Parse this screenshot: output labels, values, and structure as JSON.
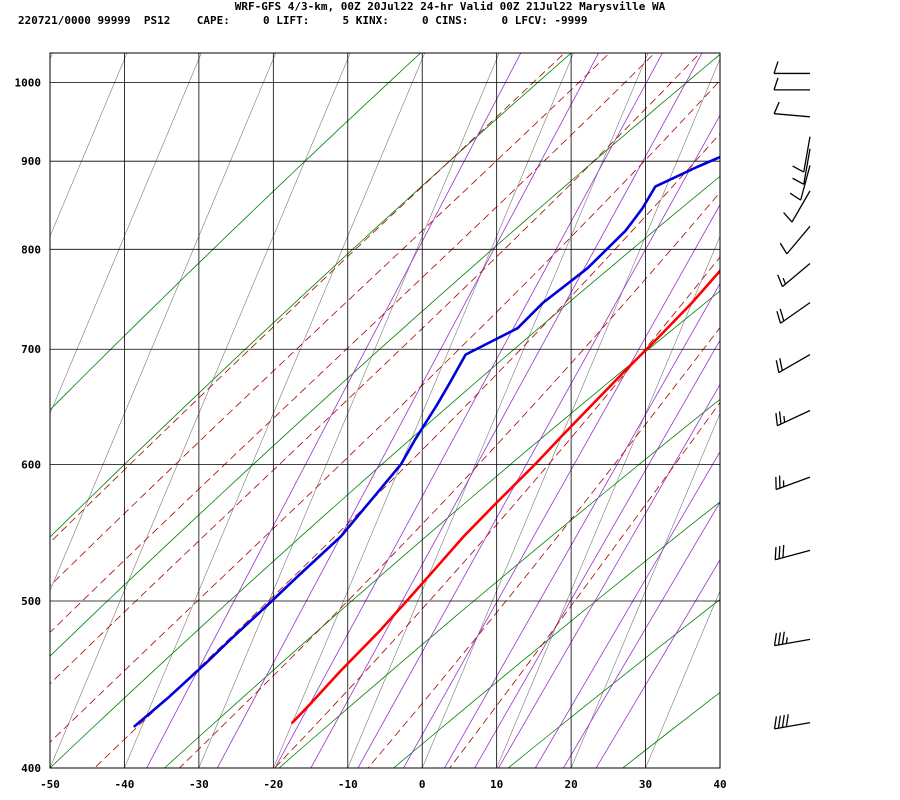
{
  "header": {
    "title": "WRF-GFS 4/3-km, 00Z 20Jul22 24-hr Valid 00Z 21Jul22 Marysville WA",
    "subtitle": "220721/0000 99999  PS12    CAPE:     0 LIFT:     5 KINX:     0 CINS:     0 LFCV: -9999"
  },
  "colors": {
    "temperature": "#ff0000",
    "dewpoint": "#0000dd",
    "isotherm": "#000000",
    "dry_adiabat": "#008000",
    "moist_adiabat": "#aa0000",
    "mixing_ratio": "#9933cc"
  },
  "chart_data": {
    "type": "line",
    "subtype": "skew-t log-p sounding",
    "xlim": [
      -50,
      40
    ],
    "ylim": [
      1040,
      400
    ],
    "y_scale": "log",
    "grid": true,
    "x_ticks": [
      "-50",
      "-40",
      "-30",
      "-20",
      "-10",
      "0",
      "10",
      "20",
      "30",
      "40"
    ],
    "y_ticks": [
      "400",
      "500",
      "600",
      "700",
      "800",
      "900",
      "1000"
    ],
    "series": [
      {
        "key": "temperature",
        "points": [
          [
            26.5,
            1012
          ],
          [
            25.0,
            1010
          ],
          [
            23.5,
            997
          ],
          [
            21.0,
            973
          ],
          [
            20.0,
            955
          ],
          [
            18.5,
            930
          ],
          [
            17.5,
            907
          ],
          [
            17.0,
            885
          ],
          [
            16.5,
            865
          ],
          [
            15.5,
            835
          ],
          [
            14.5,
            812
          ],
          [
            12.0,
            778
          ],
          [
            10.0,
            745
          ],
          [
            7.5,
            712
          ],
          [
            5.0,
            682
          ],
          [
            2.5,
            652
          ],
          [
            0.0,
            623
          ],
          [
            -2.0,
            600
          ],
          [
            -5.0,
            570
          ],
          [
            -7.5,
            545
          ],
          [
            -9.5,
            522
          ],
          [
            -11.5,
            500
          ],
          [
            -13.5,
            480
          ],
          [
            -16.5,
            455
          ],
          [
            -18.5,
            437
          ],
          [
            -20.0,
            425
          ]
        ]
      },
      {
        "key": "dewpoint",
        "points": [
          [
            12.5,
            1012
          ],
          [
            12.0,
            997
          ],
          [
            11.0,
            955
          ],
          [
            7.0,
            912
          ],
          [
            3.0,
            893
          ],
          [
            -1.5,
            870
          ],
          [
            -2.0,
            845
          ],
          [
            -3.0,
            820
          ],
          [
            -6.0,
            780
          ],
          [
            -10.0,
            745
          ],
          [
            -12.0,
            720
          ],
          [
            -17.5,
            695
          ],
          [
            -18.0,
            670
          ],
          [
            -18.5,
            650
          ],
          [
            -19.5,
            620
          ],
          [
            -20.0,
            600
          ],
          [
            -22.0,
            572
          ],
          [
            -24.0,
            545
          ],
          [
            -27.5,
            517
          ],
          [
            -30.0,
            497
          ],
          [
            -33.0,
            475
          ],
          [
            -35.0,
            460
          ],
          [
            -38.0,
            440
          ],
          [
            -41.0,
            423
          ]
        ]
      }
    ],
    "wind_barbs": [
      {
        "pressure": 425,
        "dir_deg": 260,
        "speed_kt": 40
      },
      {
        "pressure": 475,
        "dir_deg": 260,
        "speed_kt": 35
      },
      {
        "pressure": 535,
        "dir_deg": 255,
        "speed_kt": 30
      },
      {
        "pressure": 590,
        "dir_deg": 250,
        "speed_kt": 25
      },
      {
        "pressure": 645,
        "dir_deg": 245,
        "speed_kt": 25
      },
      {
        "pressure": 695,
        "dir_deg": 240,
        "speed_kt": 20
      },
      {
        "pressure": 745,
        "dir_deg": 235,
        "speed_kt": 20
      },
      {
        "pressure": 785,
        "dir_deg": 230,
        "speed_kt": 15
      },
      {
        "pressure": 825,
        "dir_deg": 220,
        "speed_kt": 10
      },
      {
        "pressure": 865,
        "dir_deg": 210,
        "speed_kt": 10
      },
      {
        "pressure": 895,
        "dir_deg": 195,
        "speed_kt": 10
      },
      {
        "pressure": 915,
        "dir_deg": 190,
        "speed_kt": 10
      },
      {
        "pressure": 930,
        "dir_deg": 190,
        "speed_kt": 10
      },
      {
        "pressure": 955,
        "dir_deg": 275,
        "speed_kt": 10
      },
      {
        "pressure": 990,
        "dir_deg": 270,
        "speed_kt": 10
      },
      {
        "pressure": 1012,
        "dir_deg": 270,
        "speed_kt": 10
      }
    ]
  }
}
